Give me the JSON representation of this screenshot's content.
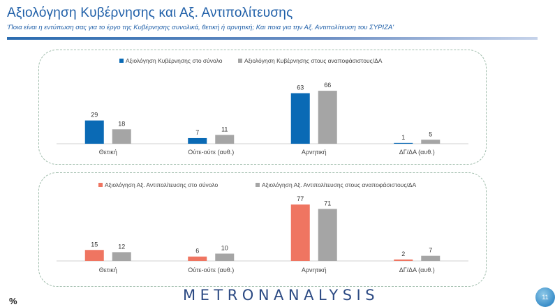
{
  "header": {
    "title": "Αξιολόγηση Κυβέρνησης και Αξ. Αντιπολίτευσης",
    "subtitle": "'Ποια είναι η εντύπωση σας για το έργο της Κυβέρνησης συνολικά, θετική ή αρνητική; Και ποια για την Αξ. Αντιπολίτευση του ΣΥΡΙΖΑ'"
  },
  "colors": {
    "title": "#1f5fa8",
    "government": "#0a6ab5",
    "opposition": "#ef7561",
    "undecided": "#a5a5a5",
    "panel_border": "#9fbcab"
  },
  "chart_data": [
    {
      "type": "bar",
      "categories": [
        "Θετική",
        "Ούτε-ούτε (αυθ.)",
        "Αρνητική",
        "ΔΓ/ΔΑ (αυθ.)"
      ],
      "series": [
        {
          "name": "Αξιολόγηση Κυβέρνησης στο σύνολο",
          "values": [
            29,
            7,
            63,
            1
          ],
          "color": "#0a6ab5"
        },
        {
          "name": "Αξιολόγηση Κυβέρνησης στους αναποφάσιστους/ΔΑ",
          "values": [
            18,
            11,
            66,
            5
          ],
          "color": "#a5a5a5"
        }
      ],
      "ylim": [
        0,
        80
      ],
      "legend": "top-center",
      "grid": false,
      "data_labels": true
    },
    {
      "type": "bar",
      "categories": [
        "Θετική",
        "Ούτε-ούτε (αυθ.)",
        "Αρνητική",
        "ΔΓ/ΔΑ (αυθ.)"
      ],
      "series": [
        {
          "name": "Αξιολόγηση Αξ. Αντιπολίτευσης στο σύνολο",
          "values": [
            15,
            6,
            77,
            2
          ],
          "color": "#ef7561"
        },
        {
          "name": "Αξιολόγηση Αξ. Αντιπολίτευσης στους αναποφάσιστους/ΔΑ",
          "values": [
            12,
            10,
            71,
            7
          ],
          "color": "#a5a5a5"
        }
      ],
      "ylim": [
        0,
        80
      ],
      "legend": "top-center",
      "grid": false,
      "data_labels": true
    }
  ],
  "footer": {
    "percent_sign": "%",
    "logo": "METRONANALYSIS",
    "page_number": "11"
  }
}
